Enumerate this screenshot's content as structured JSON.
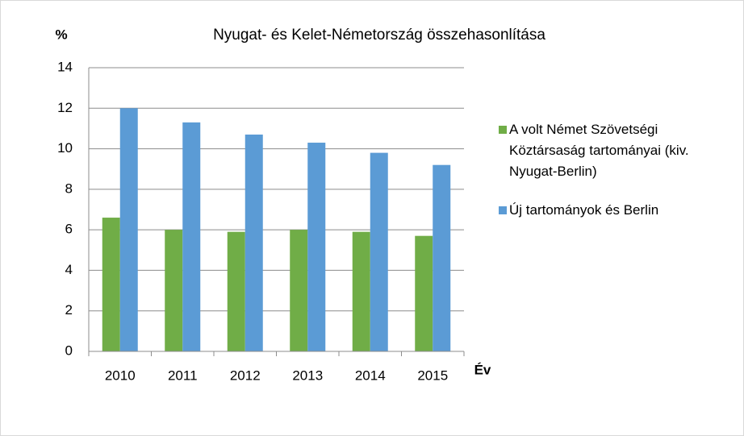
{
  "chart_data": {
    "type": "bar",
    "title": "Nyugat- és Kelet-Németország összehasonlítása",
    "y_label": "%",
    "x_label": "Év",
    "categories": [
      "2010",
      "2011",
      "2012",
      "2013",
      "2014",
      "2015"
    ],
    "series": [
      {
        "name": "A volt Német Szövetségi Köztársaság tartományai (kiv. Nyugat-Berlin)",
        "color": "#70ad47",
        "values": [
          6.6,
          6.0,
          5.9,
          6.0,
          5.9,
          5.7
        ]
      },
      {
        "name": "Új tartományok és Berlin",
        "color": "#5b9bd5",
        "values": [
          12.0,
          11.3,
          10.7,
          10.3,
          9.8,
          9.2
        ]
      }
    ],
    "ylim": [
      0,
      14
    ],
    "yticks": [
      0,
      2,
      4,
      6,
      8,
      10,
      12,
      14
    ],
    "grid": true
  }
}
